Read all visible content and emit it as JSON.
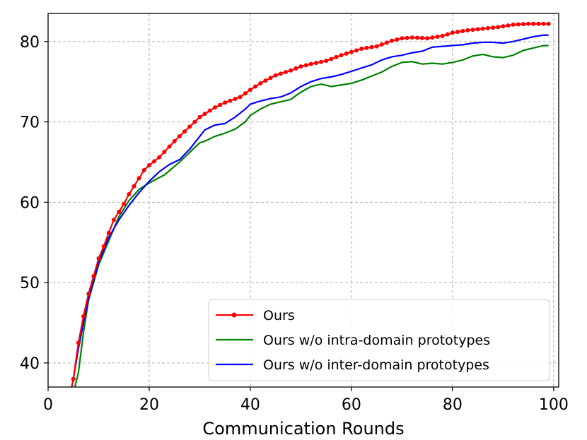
{
  "chart_data": {
    "type": "line",
    "title": "",
    "xlabel": "Communication Rounds",
    "ylabel": "",
    "xlim": [
      0,
      101
    ],
    "ylim": [
      37,
      83.5
    ],
    "xticks": [
      0,
      20,
      40,
      60,
      80,
      100
    ],
    "yticks": [
      40,
      50,
      60,
      70,
      80
    ],
    "grid": true,
    "legend_position": "lower-right",
    "series": [
      {
        "name": "Ours",
        "color": "#ff0000",
        "marker": "circle",
        "knots": [
          [
            4.5,
            36.5
          ],
          [
            5,
            38
          ],
          [
            6,
            42.5
          ],
          [
            7,
            45.8
          ],
          [
            8,
            48.6
          ],
          [
            9,
            50.8
          ],
          [
            10,
            53
          ],
          [
            11,
            54.5
          ],
          [
            12,
            56.2
          ],
          [
            13,
            57.8
          ],
          [
            14,
            58.8
          ],
          [
            15,
            59.8
          ],
          [
            16,
            61
          ],
          [
            17,
            62
          ],
          [
            18,
            63
          ],
          [
            19,
            64
          ],
          [
            20,
            64.6
          ],
          [
            22,
            65.6
          ],
          [
            25,
            67.6
          ],
          [
            28,
            69.4
          ],
          [
            30,
            70.6
          ],
          [
            33,
            71.8
          ],
          [
            35,
            72.4
          ],
          [
            38,
            73.1
          ],
          [
            40,
            74
          ],
          [
            42,
            74.8
          ],
          [
            45,
            75.8
          ],
          [
            48,
            76.4
          ],
          [
            50,
            76.9
          ],
          [
            52,
            77.2
          ],
          [
            55,
            77.6
          ],
          [
            58,
            78.3
          ],
          [
            60,
            78.7
          ],
          [
            62,
            79.1
          ],
          [
            65,
            79.4
          ],
          [
            68,
            80.1
          ],
          [
            70,
            80.4
          ],
          [
            72,
            80.5
          ],
          [
            75,
            80.4
          ],
          [
            78,
            80.7
          ],
          [
            80,
            81.1
          ],
          [
            83,
            81.4
          ],
          [
            86,
            81.6
          ],
          [
            89,
            81.8
          ],
          [
            92,
            82.1
          ],
          [
            95,
            82.2
          ],
          [
            99,
            82.2
          ]
        ]
      },
      {
        "name": "Ours w/o intra-domain prototypes",
        "color": "#008000",
        "marker": "none",
        "knots": [
          [
            5,
            36.2
          ],
          [
            6,
            38.8
          ],
          [
            7,
            43.8
          ],
          [
            8,
            47.8
          ],
          [
            10,
            52.2
          ],
          [
            12,
            55.2
          ],
          [
            14,
            58.2
          ],
          [
            16,
            60.2
          ],
          [
            18,
            61.6
          ],
          [
            20,
            62.4
          ],
          [
            23,
            63.4
          ],
          [
            26,
            65
          ],
          [
            28,
            66.2
          ],
          [
            30,
            67.4
          ],
          [
            31,
            67.6
          ],
          [
            33,
            68.2
          ],
          [
            35,
            68.6
          ],
          [
            37,
            69.1
          ],
          [
            39,
            70
          ],
          [
            40,
            70.8
          ],
          [
            42,
            71.6
          ],
          [
            44,
            72.2
          ],
          [
            46,
            72.5
          ],
          [
            48,
            72.8
          ],
          [
            50,
            73.7
          ],
          [
            52,
            74.4
          ],
          [
            54,
            74.7
          ],
          [
            56,
            74.4
          ],
          [
            58,
            74.6
          ],
          [
            60,
            74.8
          ],
          [
            62,
            75.2
          ],
          [
            64,
            75.7
          ],
          [
            66,
            76.2
          ],
          [
            68,
            76.9
          ],
          [
            70,
            77.4
          ],
          [
            72,
            77.5
          ],
          [
            74,
            77.2
          ],
          [
            76,
            77.3
          ],
          [
            78,
            77.2
          ],
          [
            80,
            77.4
          ],
          [
            82,
            77.7
          ],
          [
            84,
            78.2
          ],
          [
            86,
            78.4
          ],
          [
            88,
            78.1
          ],
          [
            90,
            78
          ],
          [
            92,
            78.3
          ],
          [
            94,
            78.9
          ],
          [
            96,
            79.2
          ],
          [
            98,
            79.5
          ],
          [
            99,
            79.5
          ]
        ]
      },
      {
        "name": "Ours w/o inter-domain prototypes",
        "color": "#0000ff",
        "marker": "none",
        "knots": [
          [
            4.5,
            36.5
          ],
          [
            5,
            38
          ],
          [
            6,
            41.8
          ],
          [
            7,
            45
          ],
          [
            8,
            48
          ],
          [
            10,
            52.5
          ],
          [
            12,
            55.6
          ],
          [
            14,
            57.8
          ],
          [
            16,
            59.6
          ],
          [
            18,
            61.2
          ],
          [
            20,
            62.6
          ],
          [
            22,
            63.8
          ],
          [
            24,
            64.7
          ],
          [
            26,
            65.3
          ],
          [
            28,
            66.6
          ],
          [
            30,
            68.2
          ],
          [
            31,
            69
          ],
          [
            33,
            69.6
          ],
          [
            35,
            69.8
          ],
          [
            37,
            70.6
          ],
          [
            39,
            71.6
          ],
          [
            40,
            72.2
          ],
          [
            42,
            72.6
          ],
          [
            44,
            72.9
          ],
          [
            46,
            73.1
          ],
          [
            48,
            73.6
          ],
          [
            50,
            74.4
          ],
          [
            52,
            75
          ],
          [
            54,
            75.4
          ],
          [
            56,
            75.6
          ],
          [
            58,
            75.9
          ],
          [
            60,
            76.3
          ],
          [
            62,
            76.7
          ],
          [
            64,
            77.1
          ],
          [
            66,
            77.7
          ],
          [
            68,
            78.1
          ],
          [
            70,
            78.3
          ],
          [
            72,
            78.6
          ],
          [
            74,
            78.8
          ],
          [
            76,
            79.3
          ],
          [
            78,
            79.4
          ],
          [
            80,
            79.5
          ],
          [
            82,
            79.6
          ],
          [
            84,
            79.8
          ],
          [
            86,
            79.9
          ],
          [
            88,
            79.9
          ],
          [
            90,
            79.8
          ],
          [
            92,
            80
          ],
          [
            94,
            80.3
          ],
          [
            96,
            80.6
          ],
          [
            98,
            80.8
          ],
          [
            99,
            80.8
          ]
        ]
      }
    ]
  }
}
